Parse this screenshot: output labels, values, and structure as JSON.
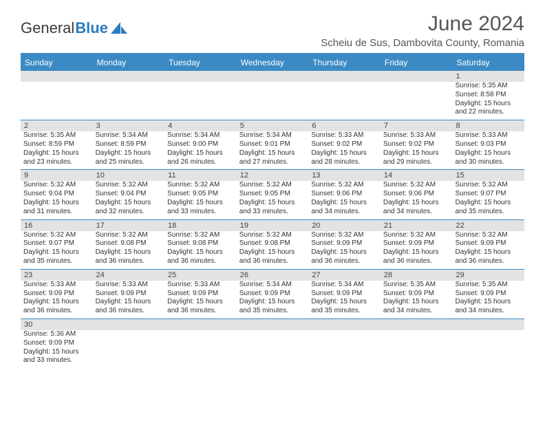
{
  "logo": {
    "text1": "General",
    "text2": "Blue"
  },
  "title": "June 2024",
  "location": "Scheiu de Sus, Dambovita County, Romania",
  "colors": {
    "header_bg": "#3b8ac4",
    "header_text": "#ffffff",
    "daynum_bg": "#e3e3e3",
    "border": "#3b8ac4",
    "body_text": "#333333",
    "title_text": "#555555"
  },
  "day_names": [
    "Sunday",
    "Monday",
    "Tuesday",
    "Wednesday",
    "Thursday",
    "Friday",
    "Saturday"
  ],
  "weeks": [
    [
      null,
      null,
      null,
      null,
      null,
      null,
      {
        "n": "1",
        "sr": "Sunrise: 5:35 AM",
        "ss": "Sunset: 8:58 PM",
        "d1": "Daylight: 15 hours",
        "d2": "and 22 minutes."
      }
    ],
    [
      {
        "n": "2",
        "sr": "Sunrise: 5:35 AM",
        "ss": "Sunset: 8:59 PM",
        "d1": "Daylight: 15 hours",
        "d2": "and 23 minutes."
      },
      {
        "n": "3",
        "sr": "Sunrise: 5:34 AM",
        "ss": "Sunset: 8:59 PM",
        "d1": "Daylight: 15 hours",
        "d2": "and 25 minutes."
      },
      {
        "n": "4",
        "sr": "Sunrise: 5:34 AM",
        "ss": "Sunset: 9:00 PM",
        "d1": "Daylight: 15 hours",
        "d2": "and 26 minutes."
      },
      {
        "n": "5",
        "sr": "Sunrise: 5:34 AM",
        "ss": "Sunset: 9:01 PM",
        "d1": "Daylight: 15 hours",
        "d2": "and 27 minutes."
      },
      {
        "n": "6",
        "sr": "Sunrise: 5:33 AM",
        "ss": "Sunset: 9:02 PM",
        "d1": "Daylight: 15 hours",
        "d2": "and 28 minutes."
      },
      {
        "n": "7",
        "sr": "Sunrise: 5:33 AM",
        "ss": "Sunset: 9:02 PM",
        "d1": "Daylight: 15 hours",
        "d2": "and 29 minutes."
      },
      {
        "n": "8",
        "sr": "Sunrise: 5:33 AM",
        "ss": "Sunset: 9:03 PM",
        "d1": "Daylight: 15 hours",
        "d2": "and 30 minutes."
      }
    ],
    [
      {
        "n": "9",
        "sr": "Sunrise: 5:32 AM",
        "ss": "Sunset: 9:04 PM",
        "d1": "Daylight: 15 hours",
        "d2": "and 31 minutes."
      },
      {
        "n": "10",
        "sr": "Sunrise: 5:32 AM",
        "ss": "Sunset: 9:04 PM",
        "d1": "Daylight: 15 hours",
        "d2": "and 32 minutes."
      },
      {
        "n": "11",
        "sr": "Sunrise: 5:32 AM",
        "ss": "Sunset: 9:05 PM",
        "d1": "Daylight: 15 hours",
        "d2": "and 33 minutes."
      },
      {
        "n": "12",
        "sr": "Sunrise: 5:32 AM",
        "ss": "Sunset: 9:05 PM",
        "d1": "Daylight: 15 hours",
        "d2": "and 33 minutes."
      },
      {
        "n": "13",
        "sr": "Sunrise: 5:32 AM",
        "ss": "Sunset: 9:06 PM",
        "d1": "Daylight: 15 hours",
        "d2": "and 34 minutes."
      },
      {
        "n": "14",
        "sr": "Sunrise: 5:32 AM",
        "ss": "Sunset: 9:06 PM",
        "d1": "Daylight: 15 hours",
        "d2": "and 34 minutes."
      },
      {
        "n": "15",
        "sr": "Sunrise: 5:32 AM",
        "ss": "Sunset: 9:07 PM",
        "d1": "Daylight: 15 hours",
        "d2": "and 35 minutes."
      }
    ],
    [
      {
        "n": "16",
        "sr": "Sunrise: 5:32 AM",
        "ss": "Sunset: 9:07 PM",
        "d1": "Daylight: 15 hours",
        "d2": "and 35 minutes."
      },
      {
        "n": "17",
        "sr": "Sunrise: 5:32 AM",
        "ss": "Sunset: 9:08 PM",
        "d1": "Daylight: 15 hours",
        "d2": "and 36 minutes."
      },
      {
        "n": "18",
        "sr": "Sunrise: 5:32 AM",
        "ss": "Sunset: 9:08 PM",
        "d1": "Daylight: 15 hours",
        "d2": "and 36 minutes."
      },
      {
        "n": "19",
        "sr": "Sunrise: 5:32 AM",
        "ss": "Sunset: 9:08 PM",
        "d1": "Daylight: 15 hours",
        "d2": "and 36 minutes."
      },
      {
        "n": "20",
        "sr": "Sunrise: 5:32 AM",
        "ss": "Sunset: 9:09 PM",
        "d1": "Daylight: 15 hours",
        "d2": "and 36 minutes."
      },
      {
        "n": "21",
        "sr": "Sunrise: 5:32 AM",
        "ss": "Sunset: 9:09 PM",
        "d1": "Daylight: 15 hours",
        "d2": "and 36 minutes."
      },
      {
        "n": "22",
        "sr": "Sunrise: 5:32 AM",
        "ss": "Sunset: 9:09 PM",
        "d1": "Daylight: 15 hours",
        "d2": "and 36 minutes."
      }
    ],
    [
      {
        "n": "23",
        "sr": "Sunrise: 5:33 AM",
        "ss": "Sunset: 9:09 PM",
        "d1": "Daylight: 15 hours",
        "d2": "and 36 minutes."
      },
      {
        "n": "24",
        "sr": "Sunrise: 5:33 AM",
        "ss": "Sunset: 9:09 PM",
        "d1": "Daylight: 15 hours",
        "d2": "and 36 minutes."
      },
      {
        "n": "25",
        "sr": "Sunrise: 5:33 AM",
        "ss": "Sunset: 9:09 PM",
        "d1": "Daylight: 15 hours",
        "d2": "and 36 minutes."
      },
      {
        "n": "26",
        "sr": "Sunrise: 5:34 AM",
        "ss": "Sunset: 9:09 PM",
        "d1": "Daylight: 15 hours",
        "d2": "and 35 minutes."
      },
      {
        "n": "27",
        "sr": "Sunrise: 5:34 AM",
        "ss": "Sunset: 9:09 PM",
        "d1": "Daylight: 15 hours",
        "d2": "and 35 minutes."
      },
      {
        "n": "28",
        "sr": "Sunrise: 5:35 AM",
        "ss": "Sunset: 9:09 PM",
        "d1": "Daylight: 15 hours",
        "d2": "and 34 minutes."
      },
      {
        "n": "29",
        "sr": "Sunrise: 5:35 AM",
        "ss": "Sunset: 9:09 PM",
        "d1": "Daylight: 15 hours",
        "d2": "and 34 minutes."
      }
    ],
    [
      {
        "n": "30",
        "sr": "Sunrise: 5:36 AM",
        "ss": "Sunset: 9:09 PM",
        "d1": "Daylight: 15 hours",
        "d2": "and 33 minutes."
      },
      null,
      null,
      null,
      null,
      null,
      null
    ]
  ]
}
